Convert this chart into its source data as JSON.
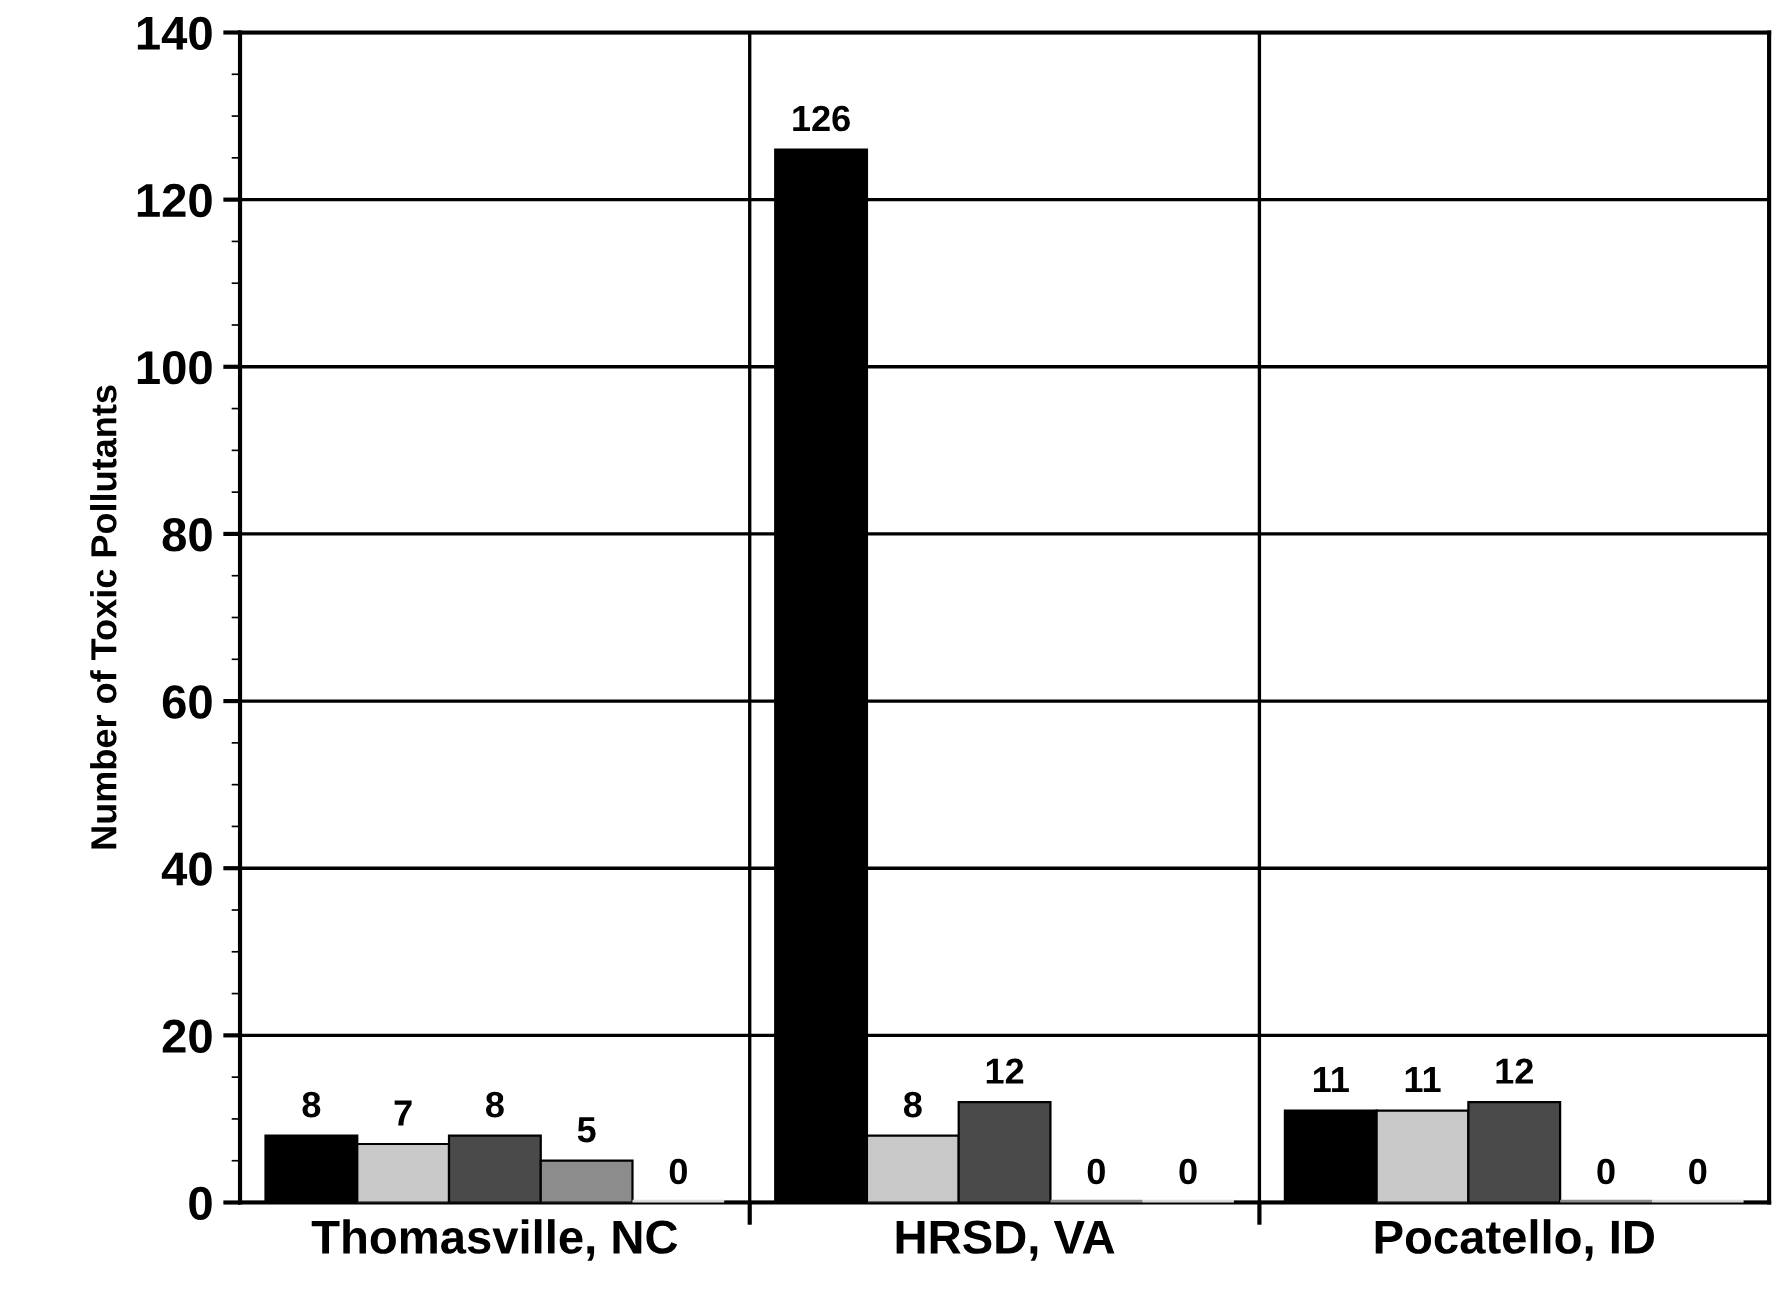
{
  "chart_data": {
    "type": "bar",
    "ylabel": "Number of Toxic Pollutants",
    "categories": [
      "Thomasville, NC",
      "HRSD, VA",
      "Pocatello, ID"
    ],
    "series": [
      {
        "color": "#000000",
        "values": [
          8,
          126,
          11
        ]
      },
      {
        "color": "#c8c8c8",
        "values": [
          7,
          8,
          11
        ]
      },
      {
        "color": "#4a4a4a",
        "values": [
          8,
          12,
          12
        ]
      },
      {
        "color": "#8c8c8c",
        "values": [
          5,
          0,
          0
        ]
      },
      {
        "color": "#dcdcdc",
        "values": [
          0,
          0,
          0
        ]
      }
    ],
    "ylim": [
      0,
      140
    ],
    "yticks": [
      0,
      20,
      40,
      60,
      80,
      100,
      120,
      140
    ],
    "grid": true,
    "data_labels": true
  }
}
